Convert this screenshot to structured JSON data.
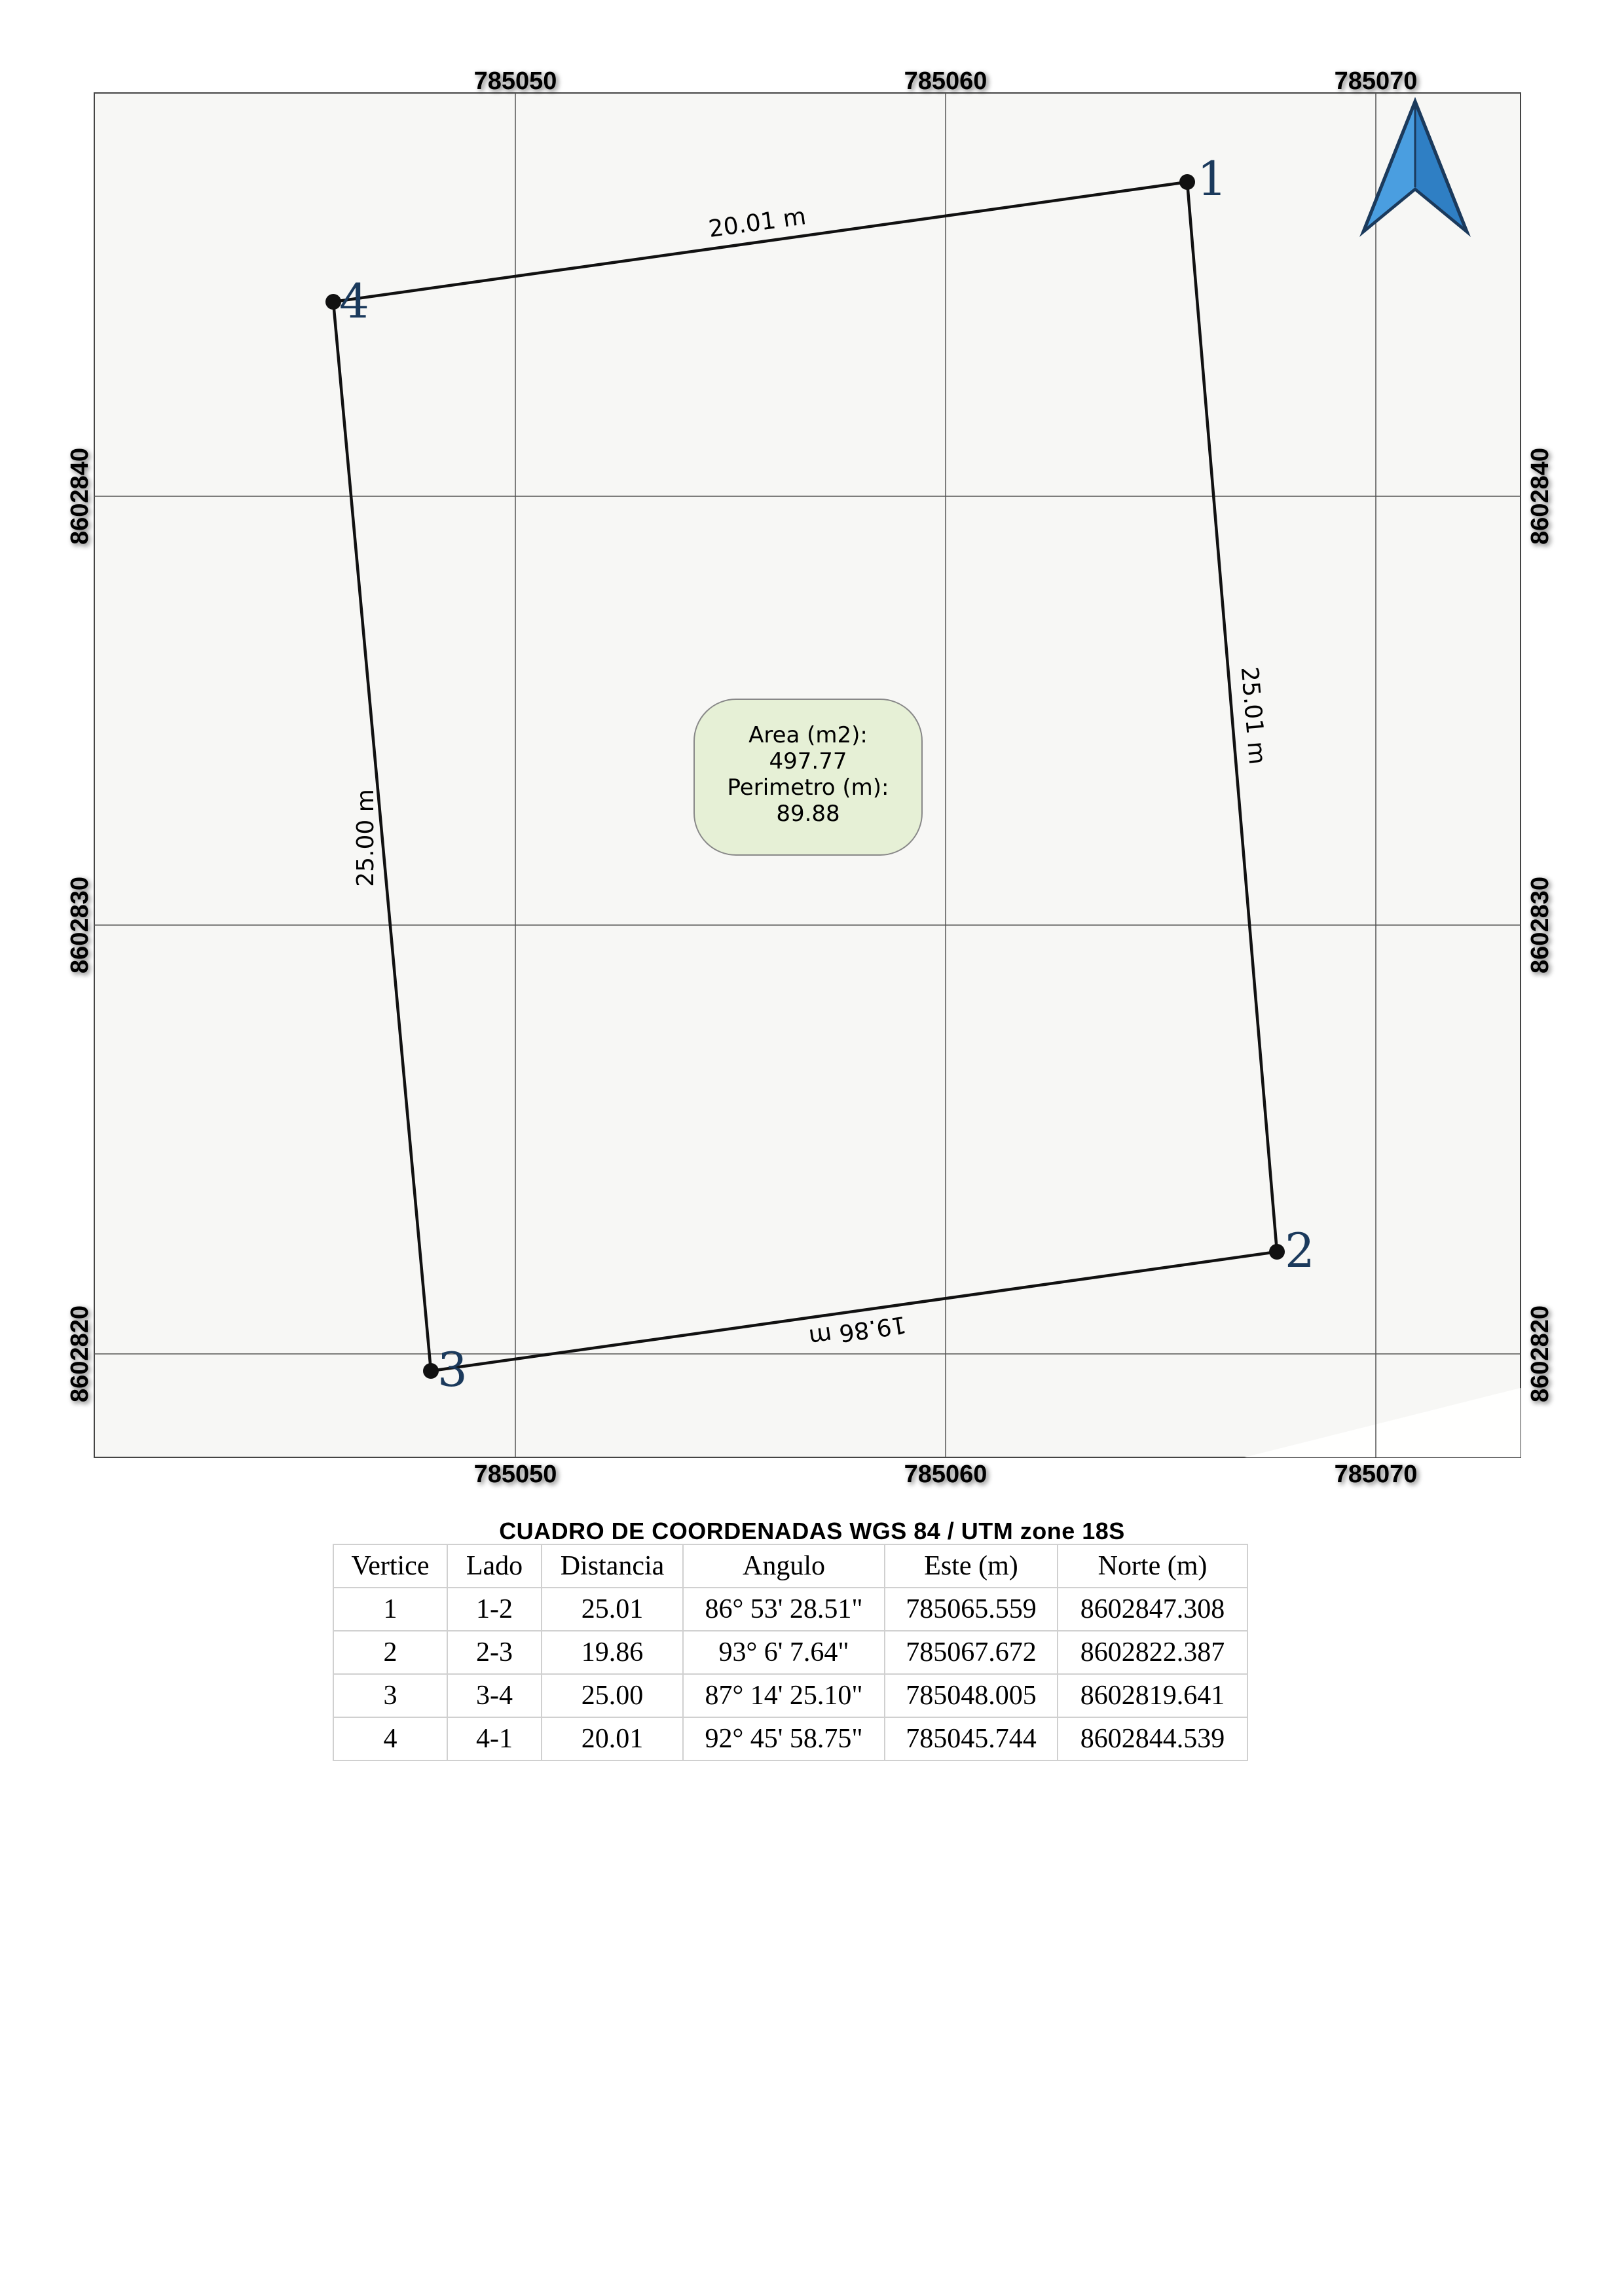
{
  "map": {
    "x_ticks": [
      "785050",
      "785060",
      "785070"
    ],
    "y_ticks": [
      "8602840",
      "8602830",
      "8602820"
    ],
    "vertex_labels": [
      "1",
      "2",
      "3",
      "4"
    ],
    "side_labels": {
      "s12": "25.01 m",
      "s23": "19.86 m",
      "s34": "25.00 m",
      "s41": "20.01 m"
    },
    "summary": {
      "area_label": "Area (m2):",
      "area_value": "497.77",
      "perimeter_label": "Perimetro (m):",
      "perimeter_value": "89.88"
    },
    "colors": {
      "frame_bg": "#f7f7f5",
      "grid": "#555555",
      "polygon": "#111111",
      "vertex_label": "#1b3a5c",
      "summary_bg": "#e6f0d6",
      "north_arrow": "#2f7fc4"
    },
    "north_arrow_icon": "north-arrow-icon"
  },
  "table": {
    "title": "CUADRO DE COORDENADAS WGS 84 / UTM zone 18S",
    "headers": [
      "Vertice",
      "Lado",
      "Distancia",
      "Angulo",
      "Este (m)",
      "Norte (m)"
    ],
    "rows": [
      [
        "1",
        "1-2",
        "25.01",
        "86° 53' 28.51\"",
        "785065.559",
        "8602847.308"
      ],
      [
        "2",
        "2-3",
        "19.86",
        "93° 6' 7.64\"",
        "785067.672",
        "8602822.387"
      ],
      [
        "3",
        "3-4",
        "25.00",
        "87° 14' 25.10\"",
        "785048.005",
        "8602819.641"
      ],
      [
        "4",
        "4-1",
        "20.01",
        "92° 45' 58.75\"",
        "785045.744",
        "8602844.539"
      ]
    ]
  }
}
